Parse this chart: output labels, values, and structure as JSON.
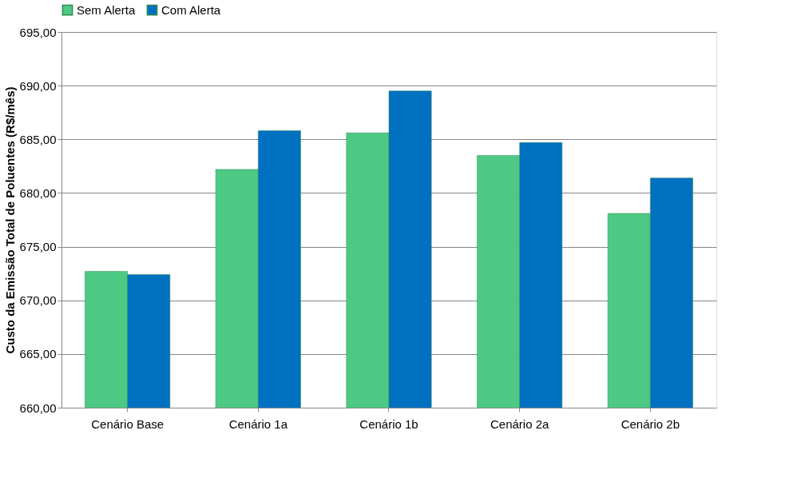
{
  "chart_data": {
    "type": "bar",
    "ylabel": "Custo  da Emissão Total de Poluentes (R$/mês)",
    "categories": [
      "Cenário Base",
      "Cenário 1a",
      "Cenário 1b",
      "Cenário 2a",
      "Cenário 2b"
    ],
    "series": [
      {
        "name": "Sem Alerta",
        "color": "#4dc983",
        "values": [
          672.7,
          682.2,
          685.6,
          683.5,
          678.1
        ]
      },
      {
        "name": "Com Alerta",
        "color": "#0070c0",
        "values": [
          672.4,
          685.8,
          689.5,
          684.7,
          681.4
        ]
      }
    ],
    "ylim": [
      660,
      695
    ],
    "yticks": [
      {
        "value": 660,
        "label": "660,00"
      },
      {
        "value": 665,
        "label": "665,00"
      },
      {
        "value": 670,
        "label": "670,00"
      },
      {
        "value": 675,
        "label": "675,00"
      },
      {
        "value": 680,
        "label": "680,00"
      },
      {
        "value": 685,
        "label": "685,00"
      },
      {
        "value": 690,
        "label": "690,00"
      },
      {
        "value": 695,
        "label": "695,00"
      }
    ],
    "grid": "y",
    "legend": "top"
  }
}
